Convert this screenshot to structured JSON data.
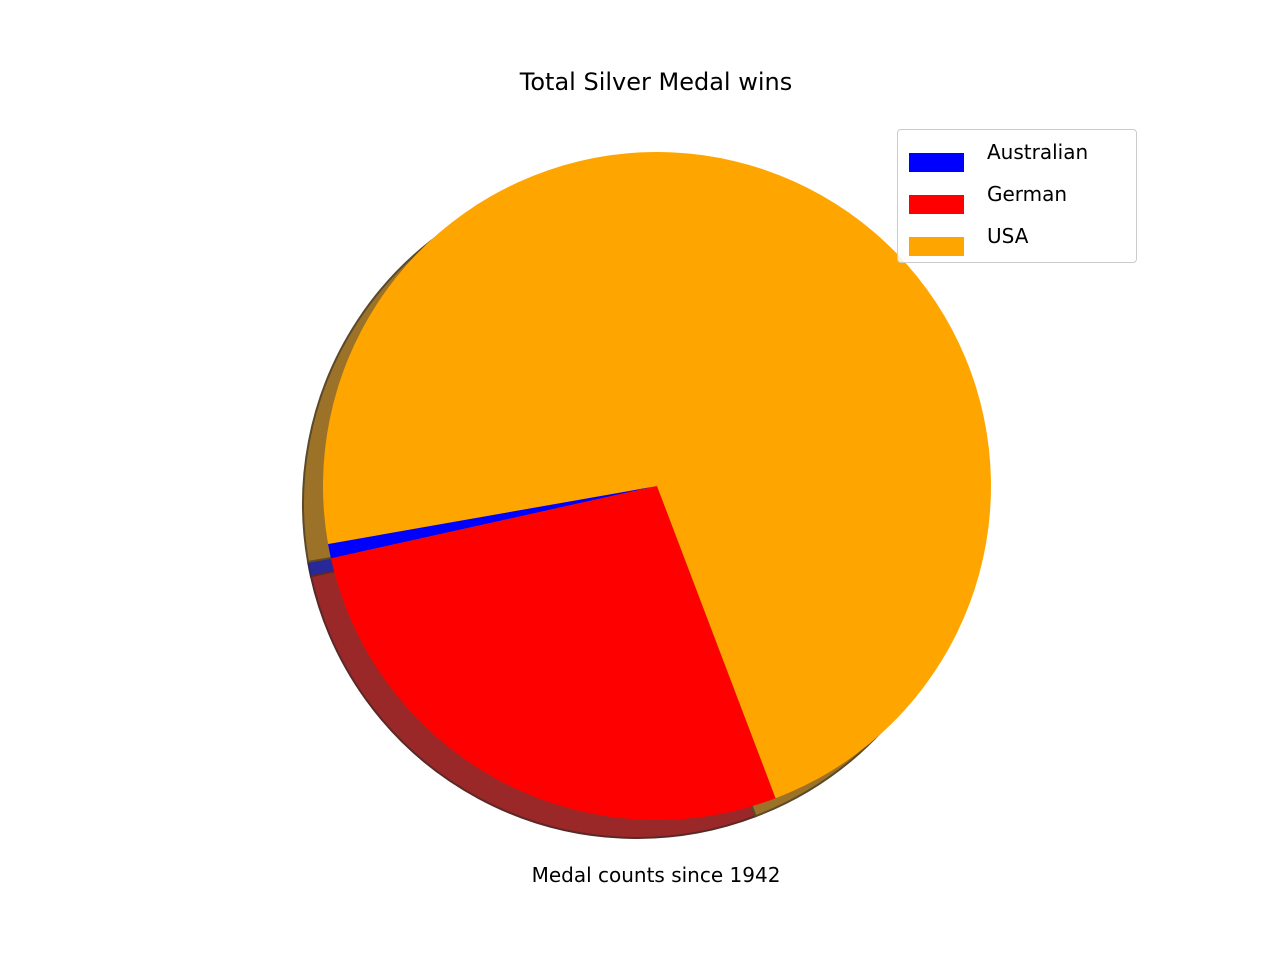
{
  "chart_data": {
    "type": "pie",
    "title": "Total Silver Medal wins",
    "xlabel": "Medal counts since 1942",
    "labels": [
      "Australian",
      "German",
      "USA"
    ],
    "values": [
      0.7,
      27.3,
      72.0
    ],
    "colors": [
      "#0000ff",
      "#ff0000",
      "#ffa500"
    ],
    "start_angle_deg": 190,
    "explode": [
      0,
      0,
      0
    ],
    "shadow": true,
    "legend": "top-right"
  }
}
